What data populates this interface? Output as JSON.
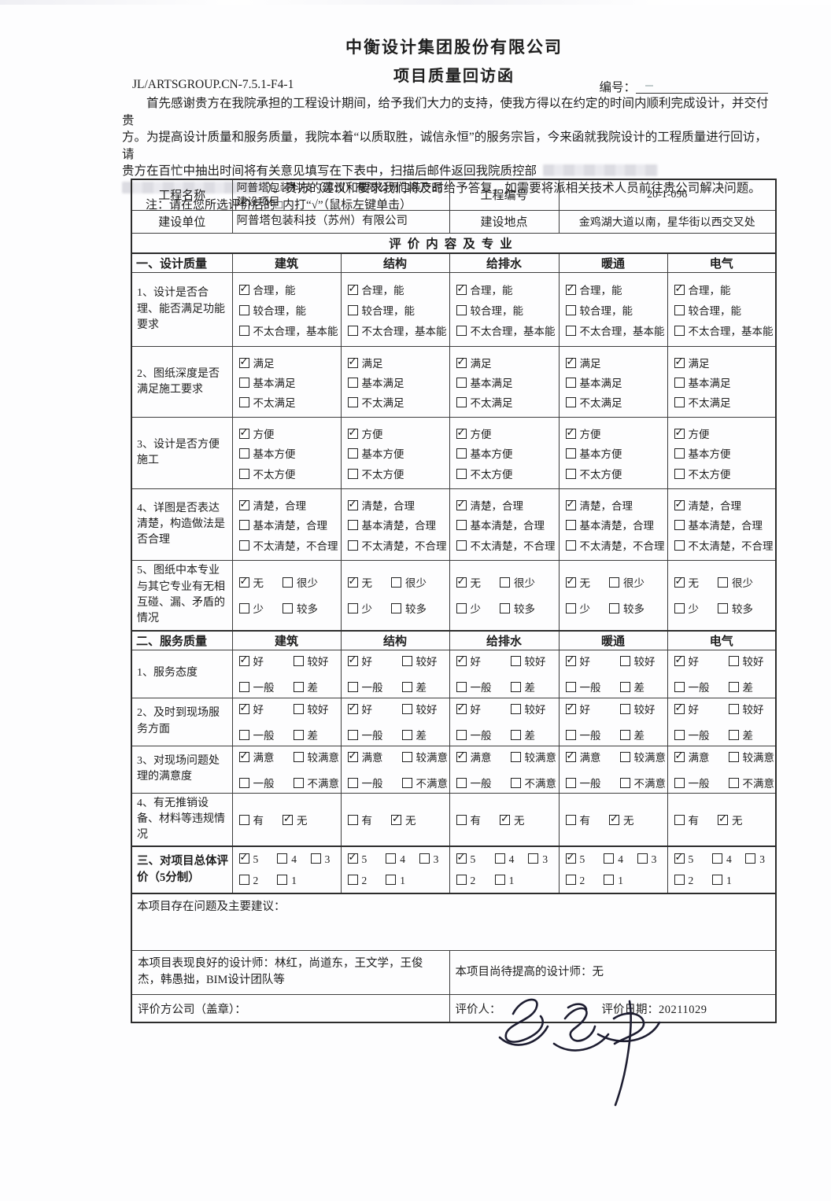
{
  "header": {
    "company": "中衡设计集团股份有限公司",
    "doc_title": "项目质量回访函",
    "form_code": "JL/ARTSGROUP.CN-7.5.1-F4-1",
    "serial_label": "编号："
  },
  "intro": {
    "line1": "首先感谢贵方在我院承担的工程设计期间，给予我们大力的支持，使我方得以在约定的时间内顺利完成设计，并交付贵",
    "line2": "方。为提高设计质量和服务质量，我院本着“以质取胜，诚信永恒”的服务宗旨，今来函就我院设计的工程质量进行回访，请",
    "line3": "贵方在百忙中抽出时间将有关意见填写在下表中，扫描后邮件返回我院质控部",
    "line4_suffix": "）。贵方的建议和要求我们将及时给予答复，如需要将派相关技术人员前往贵公司解决问题。",
    "note": "注：请在您所选评价后的□内打“√”（鼠标左键单击）"
  },
  "info": {
    "name_label": "工程名称",
    "name_value": "阿普塔包装科技（苏州）有限公司包装产品建设项目",
    "code_label": "工程编号",
    "code_value": "20-1-096",
    "owner_label": "建设单位",
    "owner_value": "阿普塔包装科技（苏州）有限公司",
    "location_label": "建设地点",
    "location_value": "金鸡湖大道以南，星华街以西交叉处"
  },
  "grid": {
    "section_banner": "评价内容及专业",
    "disciplines": [
      "建筑",
      "结构",
      "给排水",
      "暖通",
      "电气"
    ],
    "design": {
      "header": "一、设计质量",
      "rows": [
        {
          "label": "1、设计是否合理、能否满足功能要求",
          "layout": "stack",
          "options": [
            {
              "text": "合理，能",
              "checked": true
            },
            {
              "text": "较合理，能",
              "checked": false
            },
            {
              "text": "不太合理，基本能",
              "checked": false
            }
          ]
        },
        {
          "label": "2、图纸深度是否满足施工要求",
          "layout": "stack",
          "options": [
            {
              "text": "满足",
              "checked": true
            },
            {
              "text": "基本满足",
              "checked": false
            },
            {
              "text": "不太满足",
              "checked": false
            }
          ]
        },
        {
          "label": "3、设计是否方便施工",
          "layout": "stack",
          "options": [
            {
              "text": "方便",
              "checked": true
            },
            {
              "text": "基本方便",
              "checked": false
            },
            {
              "text": "不太方便",
              "checked": false
            }
          ]
        },
        {
          "label": "4、详图是否表达清楚，构造做法是否合理",
          "layout": "stack",
          "options": [
            {
              "text": "清楚，合理",
              "checked": true
            },
            {
              "text": "基本清楚，合理",
              "checked": false
            },
            {
              "text": "不太清楚，不合理",
              "checked": false
            }
          ]
        },
        {
          "label": "5、图纸中本专业与其它专业有无相互碰、漏、矛盾的情况",
          "layout": "grid2",
          "options": [
            {
              "text": "无",
              "checked": true
            },
            {
              "text": "很少",
              "checked": false
            },
            {
              "text": "少",
              "checked": false
            },
            {
              "text": "较多",
              "checked": false
            }
          ]
        }
      ]
    },
    "service": {
      "header": "二、服务质量",
      "rows": [
        {
          "label": "1、服务态度",
          "layout": "grid2",
          "options": [
            {
              "text": "好",
              "checked": true
            },
            {
              "text": "较好",
              "checked": false
            },
            {
              "text": "一般",
              "checked": false
            },
            {
              "text": "差",
              "checked": false
            }
          ]
        },
        {
          "label": "2、及时到现场服务方面",
          "layout": "grid2",
          "options": [
            {
              "text": "好",
              "checked": true
            },
            {
              "text": "较好",
              "checked": false
            },
            {
              "text": "一般",
              "checked": false
            },
            {
              "text": "差",
              "checked": false
            }
          ]
        },
        {
          "label": "3、对现场问题处理的满意度",
          "layout": "grid2",
          "options": [
            {
              "text": "满意",
              "checked": true
            },
            {
              "text": "较满意",
              "checked": false
            },
            {
              "text": "一般",
              "checked": false
            },
            {
              "text": "不满意",
              "checked": false
            }
          ]
        },
        {
          "label": "4、有无推销设备、材料等违规情况",
          "layout": "grid2",
          "options": [
            {
              "text": "有",
              "checked": false
            },
            {
              "text": "无",
              "checked": true
            }
          ]
        }
      ]
    },
    "overall": {
      "label": "三、对项目总体评价（5分制）",
      "layout": "grid3",
      "options": [
        {
          "text": "5",
          "checked": true
        },
        {
          "text": "4",
          "checked": false
        },
        {
          "text": "3",
          "checked": false
        },
        {
          "text": "2",
          "checked": false
        },
        {
          "text": "1",
          "checked": false
        }
      ]
    },
    "problems_label": "本项目存在问题及主要建议：",
    "good_designers": "本项目表现良好的设计师：林红，尚道东，王文学，王俊杰，韩愚拙，BIM设计团队等",
    "improve_designers": "本项目尚待提高的设计师：无"
  },
  "footer": {
    "company_seal_label": "评价方公司（盖章）：",
    "evaluator_label": "评价人：",
    "date_label": "评价日期：",
    "date_value": "20211029"
  }
}
